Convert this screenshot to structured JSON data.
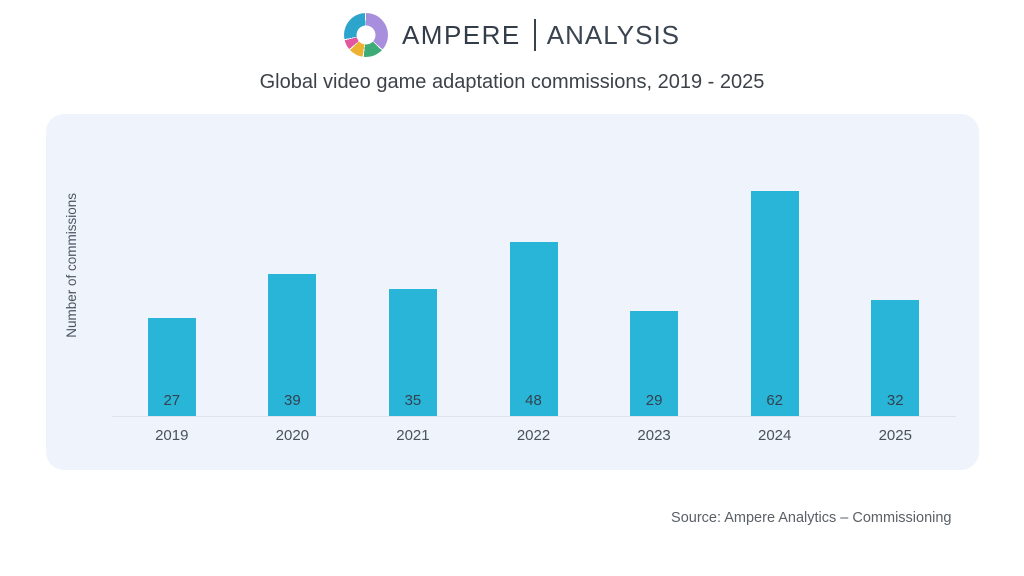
{
  "header": {
    "brand_primary": "AMPERE",
    "brand_secondary": "ANALYSIS",
    "logo_icon": "donut-chart-icon",
    "logo_colors": {
      "purple": "#a88fdd",
      "green": "#3cab77",
      "yellow": "#eeb233",
      "pink": "#e2579d",
      "teal": "#2da4cb"
    }
  },
  "title": "Global video game adaptation commissions, 2019 - 2025",
  "chart_data": {
    "type": "bar",
    "categories": [
      "2019",
      "2020",
      "2021",
      "2022",
      "2023",
      "2024",
      "2025"
    ],
    "values": [
      27,
      39,
      35,
      48,
      29,
      62,
      32
    ],
    "title": "Global video game adaptation commissions, 2019 - 2025",
    "xlabel": "",
    "ylabel": "Number of commissions",
    "bar_color": "#29b5d8",
    "panel_background": "#eff3fb",
    "value_labels_shown": true,
    "y_axis_ticks_shown": false,
    "grid": false,
    "legend": false
  },
  "footer": {
    "source": "Source: Ampere Analytics – Commissioning"
  }
}
